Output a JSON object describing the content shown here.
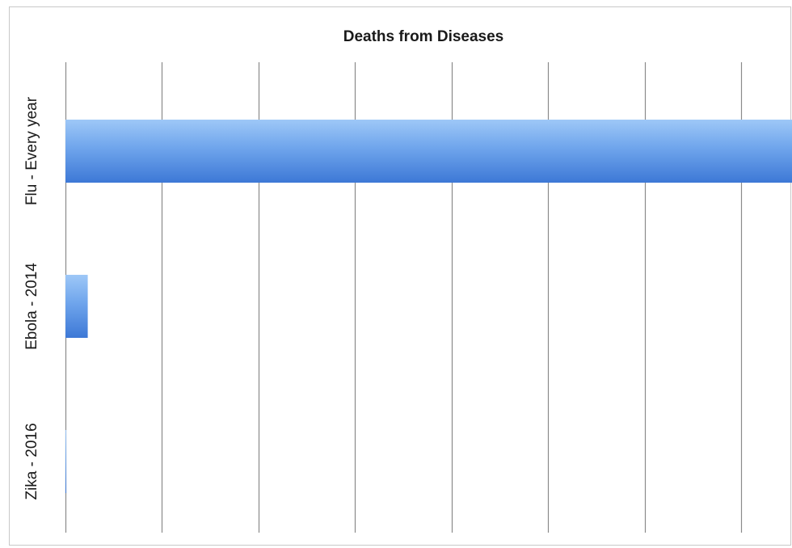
{
  "chart_data": {
    "type": "bar",
    "orientation": "horizontal",
    "title": "Deaths from Diseases",
    "categories": [
      "Flu - Every year",
      "Ebola - 2014",
      "Zika - 2016"
    ],
    "values": [
      500000,
      15000,
      500
    ],
    "xlim": [
      0,
      550000
    ],
    "x_tick_step": 65000,
    "grid": true,
    "x_tick_labels_visible": false,
    "legend": "none",
    "colors": {
      "bar_light": "#9ec8f7",
      "bar_mid": "#6fa5ec",
      "bar_dark": "#3d78d6"
    }
  }
}
